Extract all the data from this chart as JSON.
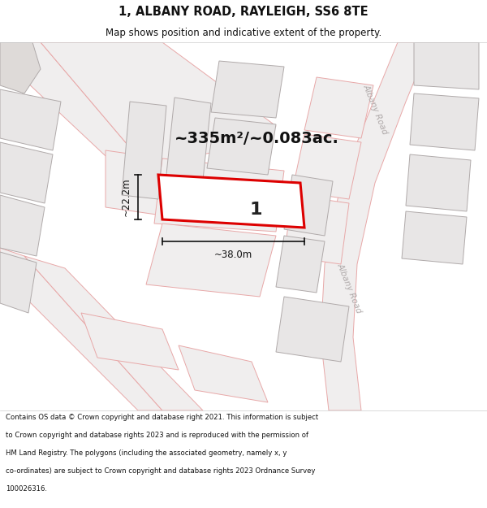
{
  "title_line1": "1, ALBANY ROAD, RAYLEIGH, SS6 8TE",
  "title_line2": "Map shows position and indicative extent of the property.",
  "footer_lines": [
    "Contains OS data © Crown copyright and database right 2021. This information is subject",
    "to Crown copyright and database rights 2023 and is reproduced with the permission of",
    "HM Land Registry. The polygons (including the associated geometry, namely x, y",
    "co-ordinates) are subject to Crown copyright and database rights 2023 Ordnance Survey",
    "100026316."
  ],
  "area_text": "~335m²/~0.083ac.",
  "width_label": "~38.0m",
  "height_label": "~22.2m",
  "property_number": "1",
  "map_bg": "#f5f3f3",
  "building_fill": "#e8e6e6",
  "building_edge": "#b0aaaa",
  "road_outline_color": "#e8a8a8",
  "road_fill": "#f5f3f3",
  "albany_road_label_color": "#b0aaaa",
  "plot_fill": "#ffffff",
  "plot_edge": "#dd0000",
  "dim_color": "#111111",
  "text_color": "#111111",
  "header_bg": "#ffffff",
  "footer_bg": "#ffffff"
}
